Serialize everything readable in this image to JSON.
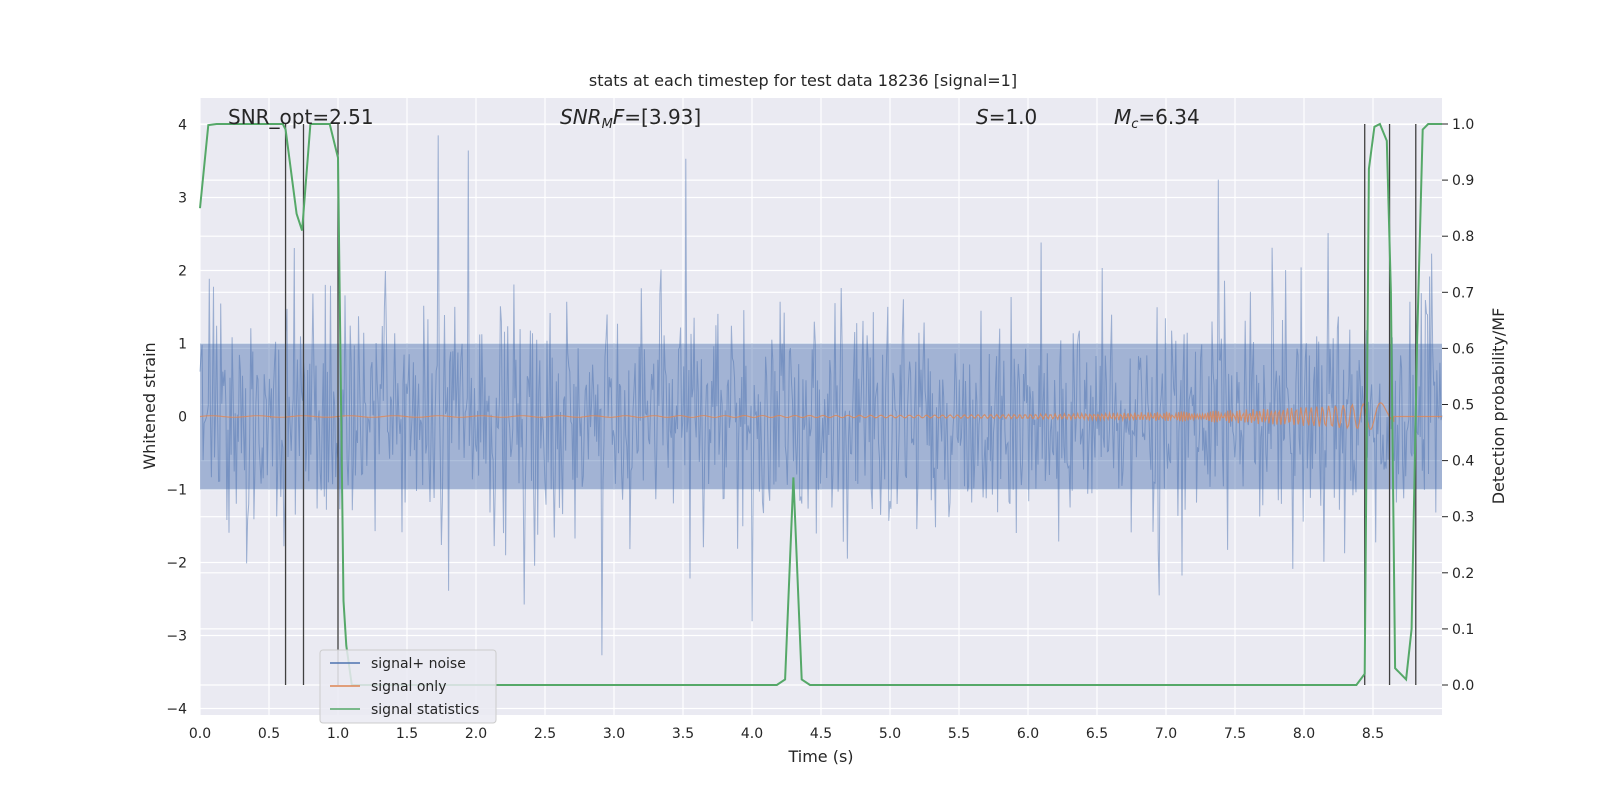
{
  "chart_data": {
    "type": "line",
    "title": "stats at each timestep for test data 18236 [signal=1]",
    "xlabel": "Time (s)",
    "ylabel": "Whitened strain",
    "y2label": "Detection probability/MF",
    "xlim": [
      0.0,
      9.0
    ],
    "ylim": [
      -4.2,
      4.2
    ],
    "y2lim": [
      -0.05,
      1.03
    ],
    "xticks": [
      "0.0",
      "0.5",
      "1.0",
      "1.5",
      "2.0",
      "2.5",
      "3.0",
      "3.5",
      "4.0",
      "4.5",
      "5.0",
      "5.5",
      "6.0",
      "6.5",
      "7.0",
      "7.5",
      "8.0",
      "8.5"
    ],
    "yticks": [
      "4",
      "3",
      "2",
      "1",
      "0",
      "−1",
      "−2",
      "−3",
      "−4"
    ],
    "y2ticks": [
      "1.0",
      "0.9",
      "0.8",
      "0.7",
      "0.6",
      "0.5",
      "0.4",
      "0.3",
      "0.2",
      "0.1",
      "0.0"
    ],
    "grid": true,
    "legend_position": "bottom-left",
    "annotations": {
      "snr_opt": "SNR_opt=2.51",
      "snr_mf_italic": "SNR",
      "snr_mf_sub": "M",
      "snr_mf_italic2": "F",
      "snr_mf_val": "=[3.93]",
      "s_italic": "S",
      "s_val": "=1.0",
      "mc_italic": "M",
      "mc_sub": "c",
      "mc_val": "=6.34"
    },
    "series": [
      {
        "name": "signal+ noise",
        "color": "#4c72b0",
        "description": "whitened noisy strain, values roughly between -3.7 and 3.9"
      },
      {
        "name": "signal only",
        "color": "#dd8452",
        "description": "chirp waveform near 0, growing to amplitude about 0.2 near 8.6 s"
      },
      {
        "name": "signal statistics",
        "color": "#55a868",
        "axis": "right",
        "points": [
          [
            0.0,
            0.85
          ],
          [
            0.06,
            0.998
          ],
          [
            0.12,
            1.0
          ],
          [
            0.3,
            1.0
          ],
          [
            0.5,
            1.0
          ],
          [
            0.6,
            1.0
          ],
          [
            0.62,
            0.99
          ],
          [
            0.7,
            0.84
          ],
          [
            0.74,
            0.81
          ],
          [
            0.8,
            1.0
          ],
          [
            0.85,
            1.0
          ],
          [
            0.94,
            1.0
          ],
          [
            1.0,
            0.94
          ],
          [
            1.04,
            0.15
          ],
          [
            1.06,
            0.07
          ],
          [
            1.1,
            0.0
          ],
          [
            2.0,
            0.0
          ],
          [
            3.0,
            0.0
          ],
          [
            4.0,
            0.0
          ],
          [
            4.18,
            0.0
          ],
          [
            4.24,
            0.01
          ],
          [
            4.3,
            0.37
          ],
          [
            4.36,
            0.01
          ],
          [
            4.42,
            0.0
          ],
          [
            5.0,
            0.0
          ],
          [
            6.0,
            0.0
          ],
          [
            7.0,
            0.0
          ],
          [
            8.0,
            0.0
          ],
          [
            8.38,
            0.0
          ],
          [
            8.44,
            0.02
          ],
          [
            8.47,
            0.92
          ],
          [
            8.51,
            0.995
          ],
          [
            8.55,
            1.0
          ],
          [
            8.6,
            0.97
          ],
          [
            8.63,
            0.7
          ],
          [
            8.66,
            0.03
          ],
          [
            8.74,
            0.01
          ],
          [
            8.78,
            0.1
          ],
          [
            8.82,
            0.62
          ],
          [
            8.86,
            0.99
          ],
          [
            8.9,
            1.0
          ],
          [
            9.0,
            1.0
          ]
        ]
      }
    ],
    "vertical_markers": [
      0.62,
      0.75,
      1.0,
      8.44,
      8.62,
      8.81
    ]
  }
}
